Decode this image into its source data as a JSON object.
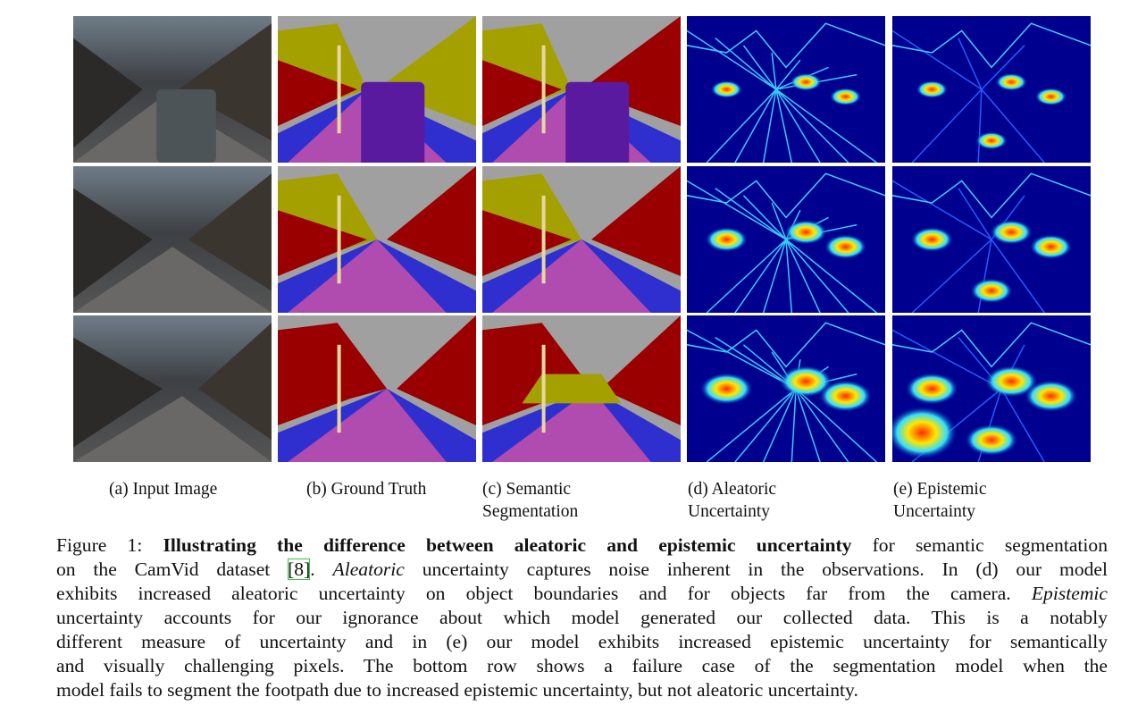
{
  "figure": {
    "panels": [
      {
        "label": [
          "(a) Input Image"
        ]
      },
      {
        "label": [
          "(b) Ground Truth"
        ]
      },
      {
        "label": [
          "(c) Semantic",
          "Segmentation"
        ]
      },
      {
        "label": [
          "(d) Aleatoric",
          "Uncertainty"
        ]
      },
      {
        "label": [
          "(e) Epistemic",
          "Uncertainty"
        ]
      }
    ],
    "caption": [
      [
        "Figure 1: ",
        "Illustrating the difference between aleatoric and epistemic uncertainty",
        " for semantic segmentation"
      ],
      [
        "on the CamVid dataset ",
        "[8]",
        ". ",
        "Aleatoric",
        " uncertainty captures noise inherent in the observations. In (d) our model"
      ],
      [
        "exhibits increased aleatoric uncertainty on object boundaries and for objects far from the camera. ",
        "Epistemic"
      ],
      [
        "uncertainty accounts for our ignorance about which model generated our collected data. This is a notably"
      ],
      [
        "different measure of uncertainty and in (e) our model exhibits increased epistemic uncertainty for semantically"
      ],
      [
        "and visually challenging pixels. The bottom row shows a failure case of the segmentation model when the"
      ],
      [
        "model fails to segment the footpath due to increased epistemic uncertainty, but not aleatoric uncertainty."
      ]
    ]
  }
}
